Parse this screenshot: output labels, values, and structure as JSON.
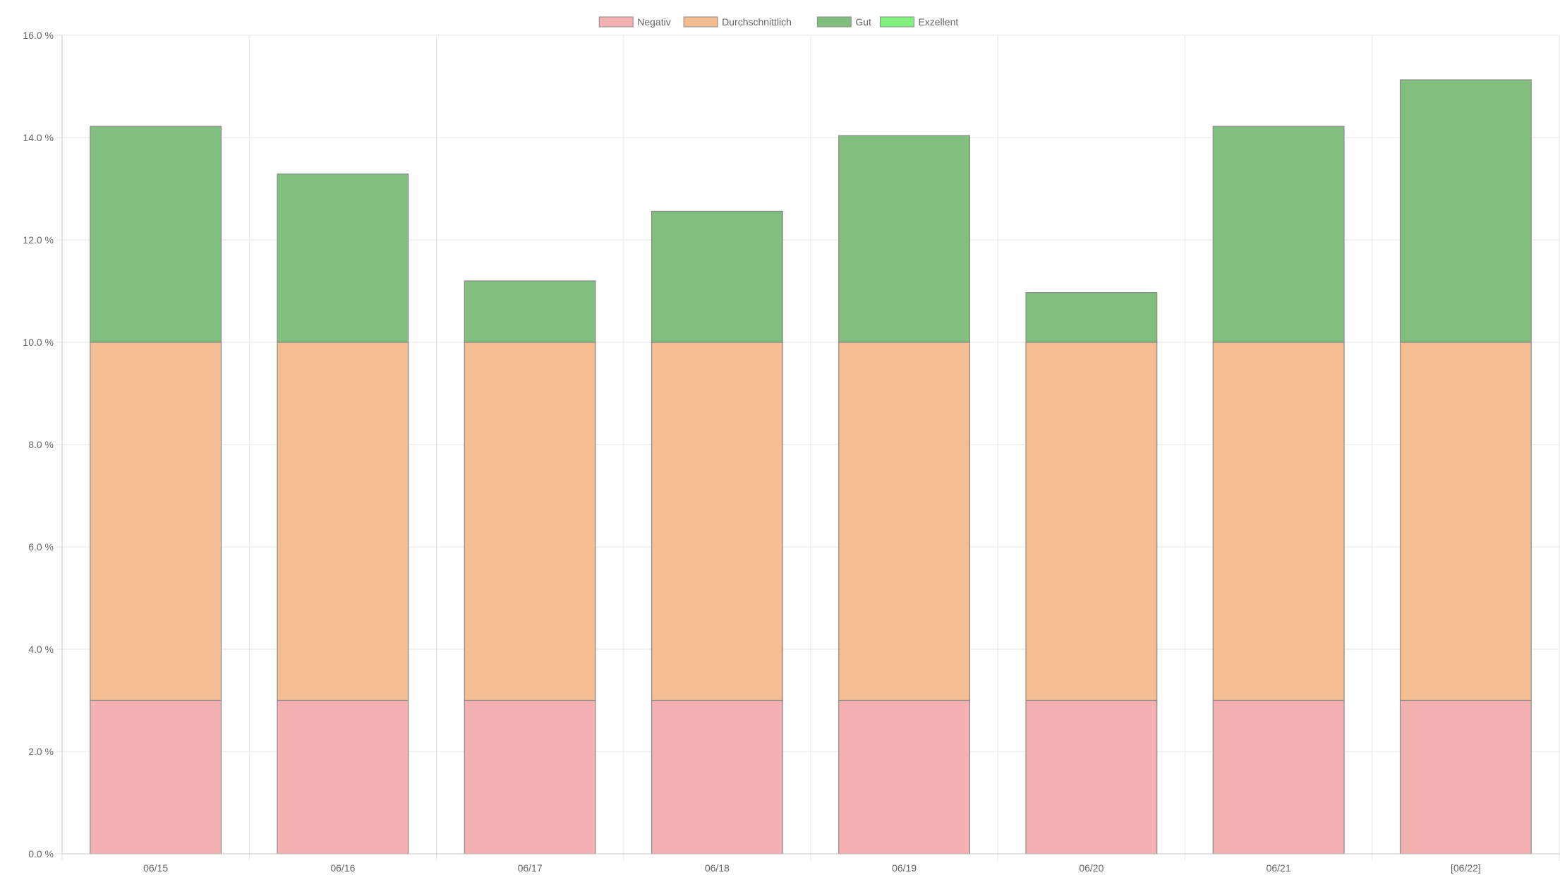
{
  "chart_data": {
    "type": "bar",
    "stacked": true,
    "categories": [
      "06/15",
      "06/16",
      "06/17",
      "06/18",
      "06/19",
      "06/20",
      "06/21",
      "[06/22]"
    ],
    "series": [
      {
        "name": "Negativ",
        "color": "#f4b1b2",
        "values": [
          3.0,
          3.0,
          3.0,
          3.0,
          3.0,
          3.0,
          3.0,
          3.0
        ]
      },
      {
        "name": "Durchschnittlich",
        "color": "#f5be92",
        "values": [
          7.0,
          7.0,
          7.0,
          7.0,
          7.0,
          7.0,
          7.0,
          7.0
        ]
      },
      {
        "name": "Gut",
        "color": "#80bf7e",
        "values": [
          4.22,
          3.29,
          1.2,
          2.56,
          4.04,
          0.97,
          4.22,
          5.13
        ]
      },
      {
        "name": "Exzellent",
        "color": "#80f17e",
        "values": [
          0,
          0,
          0,
          0,
          0,
          0,
          0,
          0
        ]
      }
    ],
    "y_ticks": [
      "0.0 %",
      "2.0 %",
      "4.0 %",
      "6.0 %",
      "8.0 %",
      "10.0 %",
      "12.0 %",
      "14.0 %",
      "16.0 %"
    ],
    "ylim": [
      0,
      16
    ],
    "y_tick_step": 2,
    "grid": true,
    "legend_position": "top-center",
    "title": "",
    "xlabel": "",
    "ylabel": ""
  }
}
